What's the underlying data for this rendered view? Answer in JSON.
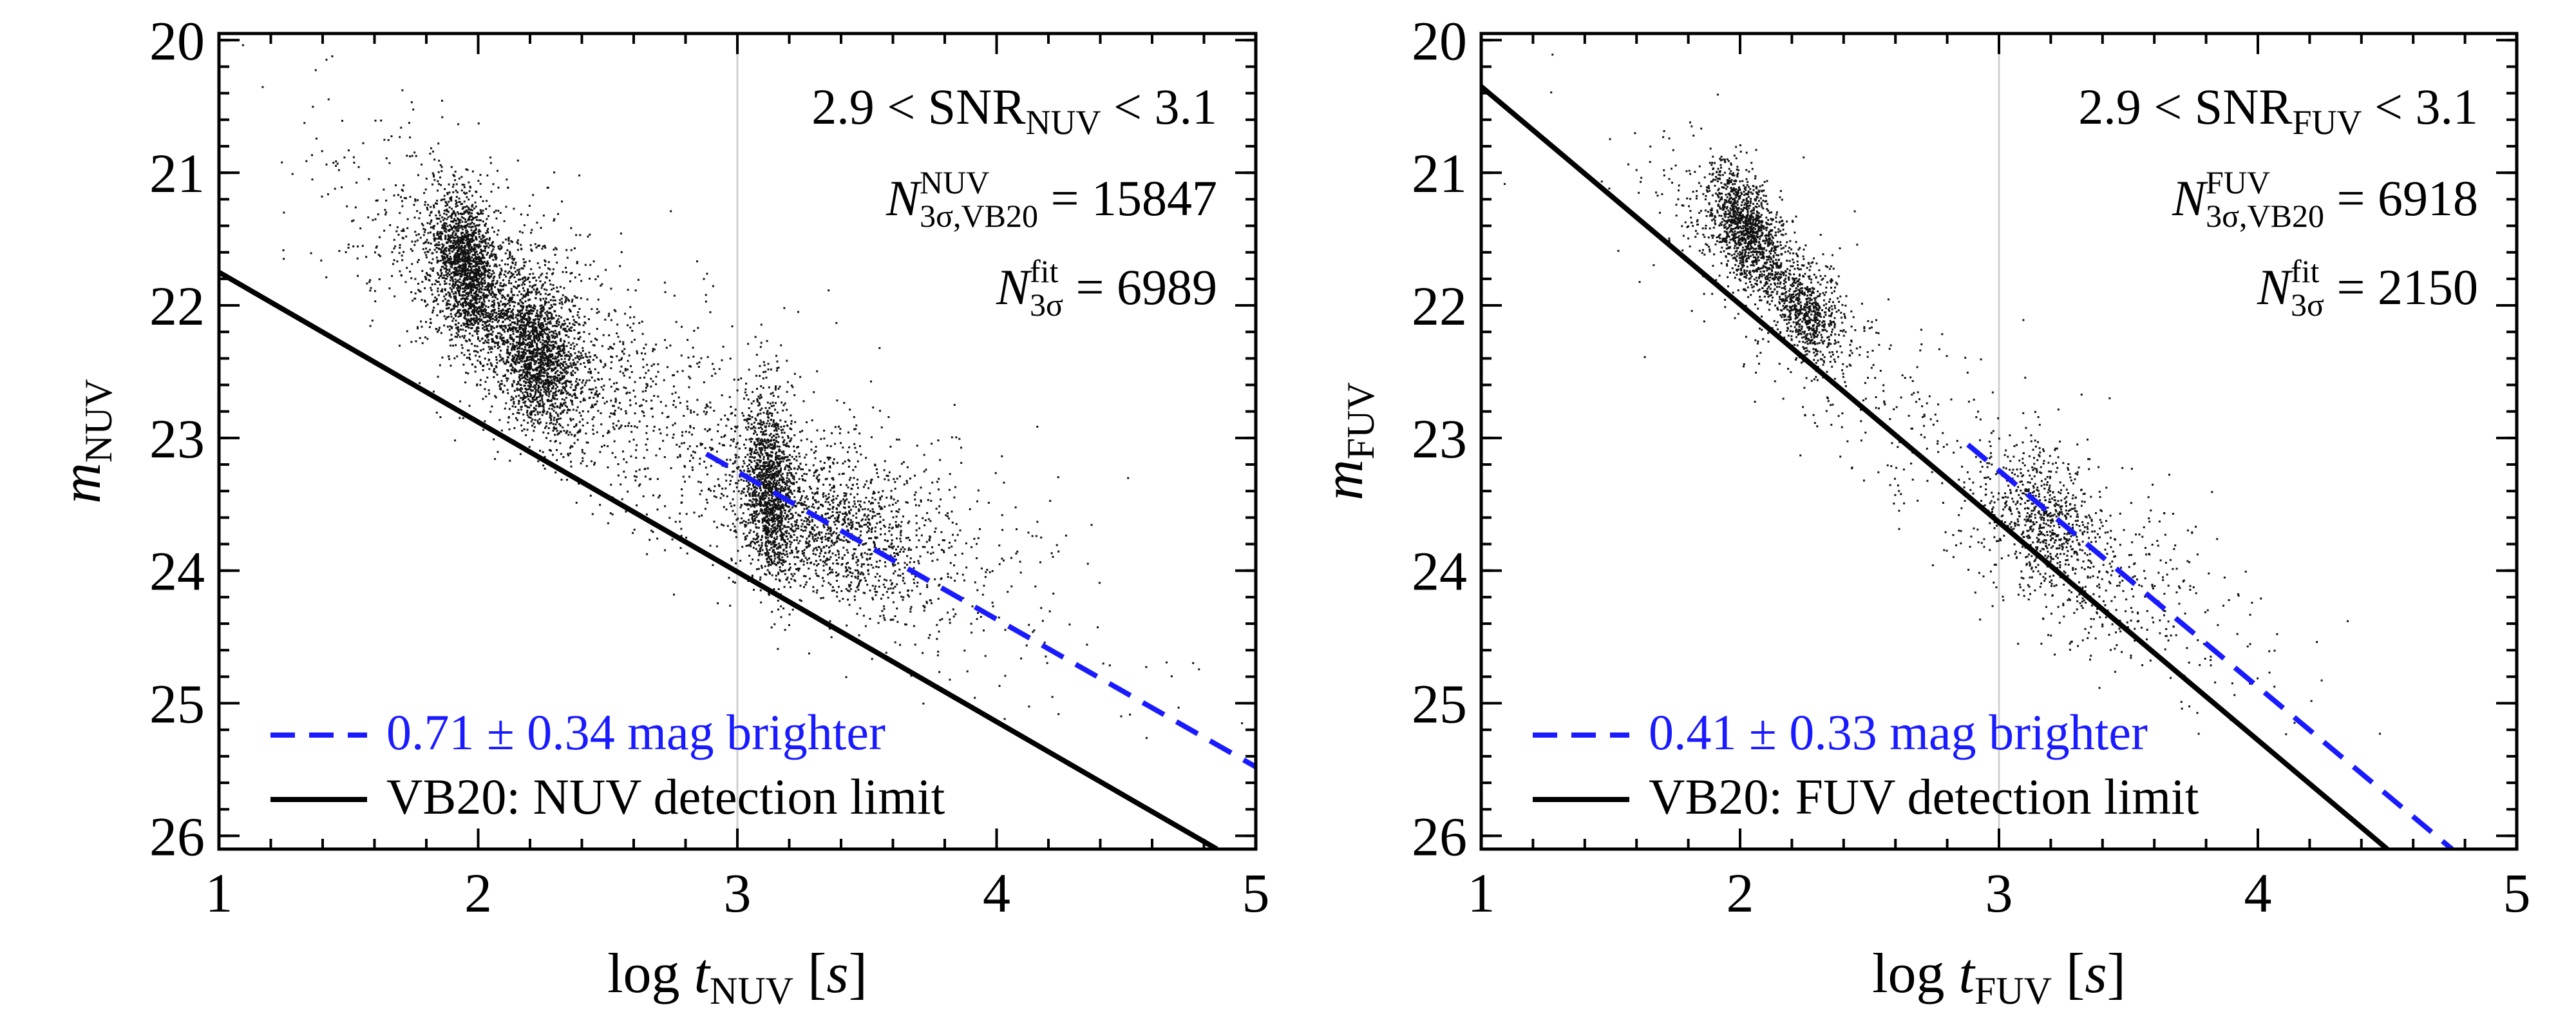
{
  "chart_data": [
    {
      "type": "scatter",
      "band": "NUV",
      "xlabel": {
        "main": "log ",
        "var": "t",
        "sub": "NUV",
        "unit": "[s]"
      },
      "ylabel": {
        "var": "m",
        "sub": "NUV"
      },
      "xlim": [
        1,
        5
      ],
      "ylim": [
        26.1,
        19.95
      ],
      "xticks": [
        1,
        2,
        3,
        4,
        5
      ],
      "yticks": [
        20,
        21,
        22,
        23,
        24,
        25,
        26
      ],
      "vline_x": 3,
      "annotations": {
        "snr": {
          "pre": "2.9 < SNR",
          "sub": "NUV",
          "post": " < 3.1"
        },
        "count_vb20": {
          "var": "N",
          "sup": "NUV",
          "sub": "3σ,VB20",
          "value": "15847"
        },
        "count_fit": {
          "var": "N",
          "sup": "fit",
          "sub": "3σ",
          "value": "6989"
        }
      },
      "series": [
        {
          "name": "0.71 ± 0.34 mag brighter",
          "style": "dashed",
          "color": "#1a1aff",
          "x": [
            2.88,
            5.0
          ],
          "y": [
            23.12,
            25.48
          ]
        },
        {
          "name": "VB20: NUV detection limit",
          "style": "solid",
          "color": "#000000",
          "x": [
            1.0,
            4.85
          ],
          "y": [
            21.75,
            26.1
          ]
        }
      ],
      "clusters": [
        {
          "cx": 1.95,
          "cy": 21.7,
          "sx": 0.06,
          "sy": 0.28,
          "rho": 0.3,
          "n": 1500
        },
        {
          "cx": 2.22,
          "cy": 22.35,
          "sx": 0.09,
          "sy": 0.3,
          "rho": 0.35,
          "n": 1700
        },
        {
          "cx": 2.1,
          "cy": 22.0,
          "sx": 0.28,
          "sy": 0.55,
          "rho": 0.7,
          "n": 1200
        },
        {
          "cx": 3.12,
          "cy": 23.4,
          "sx": 0.045,
          "sy": 0.35,
          "rho": 0.2,
          "n": 1200
        },
        {
          "cx": 3.35,
          "cy": 23.7,
          "sx": 0.18,
          "sy": 0.3,
          "rho": 0.5,
          "n": 900
        },
        {
          "cx": 3.3,
          "cy": 23.4,
          "sx": 0.45,
          "sy": 0.55,
          "rho": 0.7,
          "n": 900
        },
        {
          "cx": 2.8,
          "cy": 22.9,
          "sx": 0.7,
          "sy": 0.9,
          "rho": 0.8,
          "n": 500
        }
      ]
    },
    {
      "type": "scatter",
      "band": "FUV",
      "xlabel": {
        "main": "log ",
        "var": "t",
        "sub": "FUV",
        "unit": "[s]"
      },
      "ylabel": {
        "var": "m",
        "sub": "FUV"
      },
      "xlim": [
        1,
        5
      ],
      "ylim": [
        26.1,
        19.95
      ],
      "xticks": [
        1,
        2,
        3,
        4,
        5
      ],
      "yticks": [
        20,
        21,
        22,
        23,
        24,
        25,
        26
      ],
      "vline_x": 3,
      "annotations": {
        "snr": {
          "pre": "2.9 < SNR",
          "sub": "FUV",
          "post": " < 3.1"
        },
        "count_vb20": {
          "var": "N",
          "sup": "FUV",
          "sub": "3σ,VB20",
          "value": "6918"
        },
        "count_fit": {
          "var": "N",
          "sup": "fit",
          "sub": "3σ",
          "value": "2150"
        }
      },
      "series": [
        {
          "name": "0.41 ± 0.33 mag brighter",
          "style": "dashed",
          "color": "#1a1aff",
          "x": [
            2.88,
            4.75
          ],
          "y": [
            23.05,
            26.1
          ]
        },
        {
          "name": "VB20: FUV detection limit",
          "style": "solid",
          "color": "#000000",
          "x": [
            1.0,
            4.5
          ],
          "y": [
            20.35,
            26.1
          ]
        }
      ],
      "clusters": [
        {
          "cx": 2.02,
          "cy": 21.4,
          "sx": 0.07,
          "sy": 0.22,
          "rho": 0.5,
          "n": 1100
        },
        {
          "cx": 2.25,
          "cy": 22.05,
          "sx": 0.06,
          "sy": 0.18,
          "rho": 0.4,
          "n": 500
        },
        {
          "cx": 2.15,
          "cy": 21.8,
          "sx": 0.22,
          "sy": 0.45,
          "rho": 0.8,
          "n": 600
        },
        {
          "cx": 3.18,
          "cy": 23.6,
          "sx": 0.1,
          "sy": 0.28,
          "rho": 0.4,
          "n": 500
        },
        {
          "cx": 3.3,
          "cy": 23.9,
          "sx": 0.3,
          "sy": 0.45,
          "rho": 0.7,
          "n": 500
        },
        {
          "cx": 2.8,
          "cy": 23.0,
          "sx": 0.6,
          "sy": 0.8,
          "rho": 0.85,
          "n": 250
        }
      ]
    }
  ]
}
